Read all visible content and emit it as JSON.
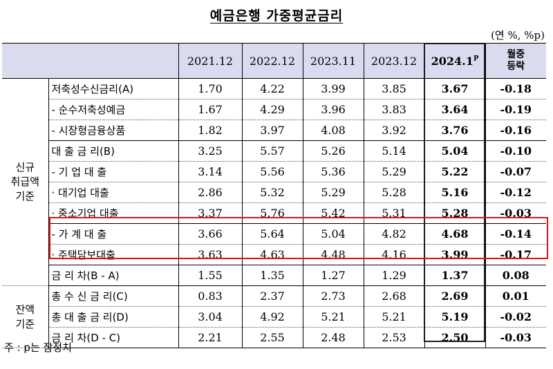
{
  "title": "예금은행 가중평균금리",
  "unit": "(연 %, %p)",
  "headers": [
    "2021.12",
    "2022.12",
    "2023.11",
    "2023.12",
    "2024.1",
    "P",
    "월중",
    "등락"
  ],
  "groups": {
    "new": [
      "신규",
      "취급액",
      "기준"
    ],
    "balance": [
      "잔액",
      "기준"
    ]
  },
  "rows": [
    {
      "label": "저축성수신금리(A)",
      "values": [
        "1.70",
        "4.22",
        "3.99",
        "3.85",
        "3.67",
        "-0.18"
      ]
    },
    {
      "label": "- 순수저축성예금",
      "values": [
        "1.67",
        "4.29",
        "3.96",
        "3.83",
        "3.64",
        "-0.19"
      ]
    },
    {
      "label": "- 시장형금융상품",
      "values": [
        "1.82",
        "3.97",
        "4.08",
        "3.92",
        "3.76",
        "-0.16"
      ]
    },
    {
      "label": "대 출 금 리(B)",
      "values": [
        "3.25",
        "5.57",
        "5.26",
        "5.14",
        "5.04",
        "-0.10"
      ]
    },
    {
      "label": "- 기 업 대 출",
      "values": [
        "3.14",
        "5.56",
        "5.36",
        "5.29",
        "5.22",
        "-0.07"
      ]
    },
    {
      "label": "· 대기업 대출",
      "values": [
        "2.86",
        "5.32",
        "5.29",
        "5.28",
        "5.16",
        "-0.12"
      ]
    },
    {
      "label": "· 중소기업 대출",
      "values": [
        "3.37",
        "5.76",
        "5.42",
        "5.31",
        "5.28",
        "-0.03"
      ]
    },
    {
      "label": "- 가 계 대 출",
      "values": [
        "3.66",
        "5.64",
        "5.04",
        "4.82",
        "4.68",
        "-0.14"
      ]
    },
    {
      "label": "· 주택담보대출",
      "values": [
        "3.63",
        "4.63",
        "4.48",
        "4.16",
        "3.99",
        "-0.17"
      ]
    },
    {
      "label": "금 리 차(B - A)",
      "values": [
        "1.55",
        "1.35",
        "1.27",
        "1.29",
        "1.37",
        "0.08"
      ]
    },
    {
      "label": "총 수 신 금 리(C)",
      "values": [
        "0.83",
        "2.37",
        "2.73",
        "2.68",
        "2.69",
        "0.01"
      ]
    },
    {
      "label": "총 대 출 금 리(D)",
      "values": [
        "3.04",
        "4.92",
        "5.21",
        "5.21",
        "5.19",
        "-0.02"
      ]
    },
    {
      "label": "금 리 차(D - C)",
      "values": [
        "2.21",
        "2.55",
        "2.48",
        "2.53",
        "2.50",
        "-0.03"
      ]
    }
  ],
  "note": "주 : p는 잠정치",
  "colors": {
    "header_bg": "#d9dcef",
    "highlight": "#e01010"
  }
}
